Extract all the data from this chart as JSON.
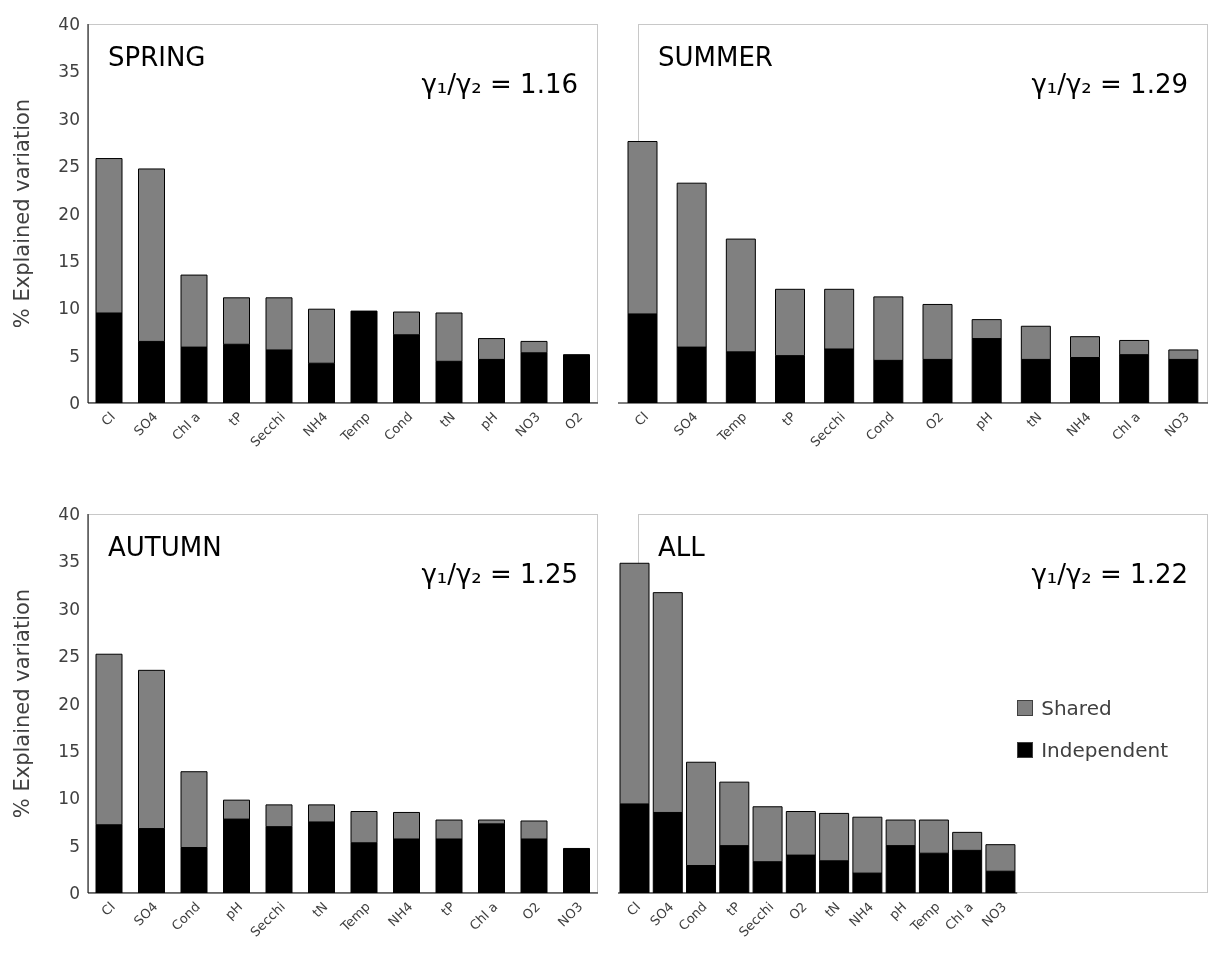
{
  "chart_data": [
    {
      "type": "bar",
      "title": "SPRING",
      "ylabel": "% Explained variation",
      "annotations": [
        "γ₁/γ₂ = 1.16"
      ],
      "categories": [
        "Cl",
        "SO4",
        "Chl a",
        "tP",
        "Secchi",
        "NH4",
        "Temp",
        "Cond",
        "tN",
        "pH",
        "NO3",
        "O2"
      ],
      "stacked": true,
      "ylim": [
        0,
        40
      ],
      "yticks": [
        0,
        5,
        10,
        15,
        20,
        25,
        30,
        35,
        40
      ],
      "series": [
        {
          "color": "#000000",
          "values": [
            9.5,
            6.5,
            5.9,
            6.2,
            5.6,
            4.2,
            9.7,
            7.2,
            4.4,
            4.6,
            5.3,
            5.1
          ]
        },
        {
          "color": "#808080",
          "values": [
            16.3,
            18.2,
            7.6,
            4.9,
            5.5,
            5.7,
            0,
            2.4,
            5.1,
            2.2,
            1.2,
            0
          ]
        }
      ]
    },
    {
      "type": "bar",
      "title": "SUMMER",
      "annotations": [
        "γ₁/γ₂ = 1.29"
      ],
      "categories": [
        "Cl",
        "SO4",
        "Temp",
        "tP",
        "Secchi",
        "Cond",
        "O2",
        "pH",
        "tN",
        "NH4",
        "Chl a",
        "NO3"
      ],
      "stacked": true,
      "ylim": [
        0,
        40
      ],
      "yticks": [
        0,
        5,
        10,
        15,
        20,
        25,
        30,
        35,
        40
      ],
      "tick_labels": "x",
      "series": [
        {
          "color": "#000000",
          "values": [
            9.4,
            5.9,
            5.4,
            5.0,
            5.7,
            4.5,
            4.6,
            6.8,
            4.6,
            4.8,
            5.1,
            4.6
          ]
        },
        {
          "color": "#808080",
          "values": [
            18.2,
            17.3,
            11.9,
            7.0,
            6.3,
            6.7,
            5.8,
            2.0,
            3.5,
            2.2,
            1.5,
            1.0
          ]
        }
      ]
    },
    {
      "type": "bar",
      "title": "AUTUMN",
      "ylabel": "% Explained variation",
      "annotations": [
        "γ₁/γ₂ = 1.25"
      ],
      "categories": [
        "Cl",
        "SO4",
        "Cond",
        "pH",
        "Secchi",
        "tN",
        "Temp",
        "NH4",
        "tP",
        "Chl a",
        "O2",
        "NO3"
      ],
      "stacked": true,
      "ylim": [
        0,
        40
      ],
      "yticks": [
        0,
        5,
        10,
        15,
        20,
        25,
        30,
        35,
        40
      ],
      "series": [
        {
          "color": "#000000",
          "values": [
            7.2,
            6.8,
            4.8,
            7.8,
            7.0,
            7.5,
            5.3,
            5.7,
            5.7,
            7.3,
            5.7,
            4.7
          ]
        },
        {
          "color": "#808080",
          "values": [
            18.0,
            16.7,
            8.0,
            2.0,
            2.3,
            1.8,
            3.3,
            2.8,
            2.0,
            0.4,
            1.9,
            0
          ]
        }
      ]
    },
    {
      "type": "bar",
      "title": "ALL",
      "annotations": [
        "γ₁/γ₂ = 1.22"
      ],
      "categories": [
        "Cl",
        "SO4",
        "Cond",
        "tP",
        "Secchi",
        "O2",
        "tN",
        "NH4",
        "pH",
        "Temp",
        "Chl a",
        "NO3"
      ],
      "stacked": true,
      "ylim": [
        0,
        40
      ],
      "yticks": [
        0,
        5,
        10,
        15,
        20,
        25,
        30,
        35,
        40
      ],
      "tick_labels": "x",
      "legend": "right",
      "series": [
        {
          "name": "Independent",
          "color": "#000000",
          "values": [
            9.4,
            8.5,
            2.9,
            5.0,
            3.3,
            4.0,
            3.4,
            2.1,
            5.0,
            4.2,
            4.5,
            2.3
          ]
        },
        {
          "name": "Shared",
          "color": "#808080",
          "values": [
            25.4,
            23.2,
            10.9,
            6.7,
            5.8,
            4.6,
            5.0,
            5.9,
            2.7,
            3.5,
            1.9,
            2.8
          ]
        }
      ]
    }
  ]
}
